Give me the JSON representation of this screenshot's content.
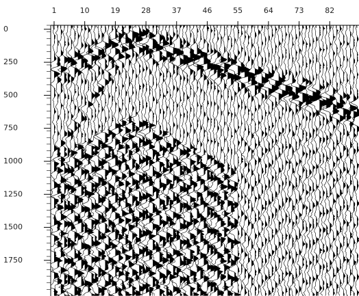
{
  "chart_data": {
    "type": "wiggle",
    "xticks": [
      1,
      10,
      19,
      28,
      37,
      46,
      55,
      64,
      73,
      82
    ],
    "xlim": [
      0,
      90
    ],
    "yticks": [
      0,
      250,
      500,
      750,
      1000,
      1250,
      1500,
      1750
    ],
    "ylim": [
      -30,
      2020
    ],
    "color": "#000000"
  }
}
